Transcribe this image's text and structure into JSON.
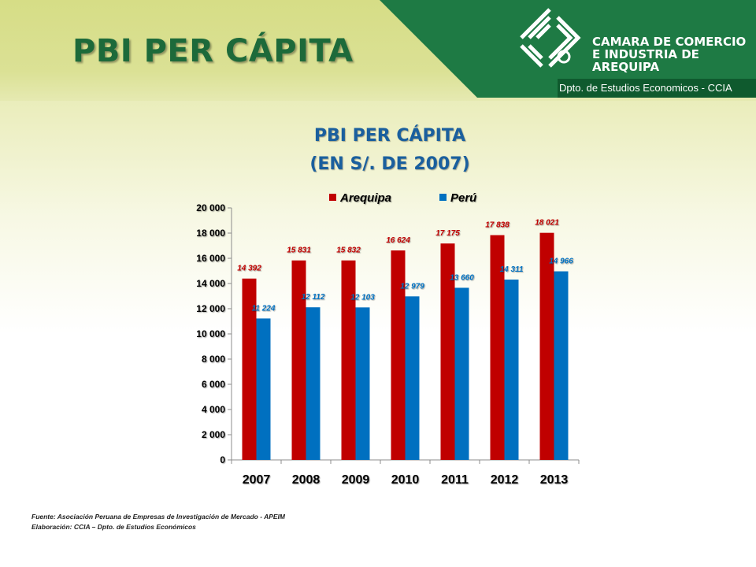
{
  "header": {
    "title": "PBI PER CÁPITA",
    "org_line1": "CAMARA DE COMERCIO",
    "org_line2": "E INDUSTRIA DE",
    "org_line3": "AREQUIPA",
    "dept": "Dpto. de Estudios Economicos - CCIA"
  },
  "chart_data": {
    "type": "bar",
    "title": "PBI PER CÁPITA",
    "subtitle": "(EN S/. DE 2007)",
    "categories": [
      "2007",
      "2008",
      "2009",
      "2010",
      "2011",
      "2012",
      "2013"
    ],
    "series": [
      {
        "name": "Arequipa",
        "values": [
          14392,
          15831,
          15832,
          16624,
          17175,
          17838,
          18021
        ],
        "labels": [
          "14 392",
          "15 831",
          "15 832",
          "16 624",
          "17 175",
          "17 838",
          "18 021"
        ],
        "color": "#c00000"
      },
      {
        "name": "Perú",
        "values": [
          11224,
          12112,
          12103,
          12979,
          13660,
          14311,
          14966
        ],
        "labels": [
          "11 224",
          "12 112",
          "12 103",
          "12 979",
          "13 660",
          "14 311",
          "14 966"
        ],
        "color": "#0070c0"
      }
    ],
    "ylim": [
      0,
      20000
    ],
    "yticks": [
      0,
      2000,
      4000,
      6000,
      8000,
      10000,
      12000,
      14000,
      16000,
      18000,
      20000
    ],
    "ytick_labels": [
      "0",
      "2 000",
      "4 000",
      "6 000",
      "8 000",
      "10 000",
      "12 000",
      "14 000",
      "16 000",
      "18 000",
      "20 000"
    ],
    "xlabel": "",
    "ylabel": "",
    "legend": "top-center",
    "grid": false
  },
  "footer": {
    "source": "Fuente: Asociación Peruana de Empresas de Investigación de Mercado - APEIM",
    "prepared": "Elaboración: CCIA – Dpto. de Estudios Económicos"
  },
  "colors": {
    "title_green": "#1d6a3a",
    "brand_green": "#1e7a44",
    "chart_title_blue": "#1a5f9e"
  }
}
